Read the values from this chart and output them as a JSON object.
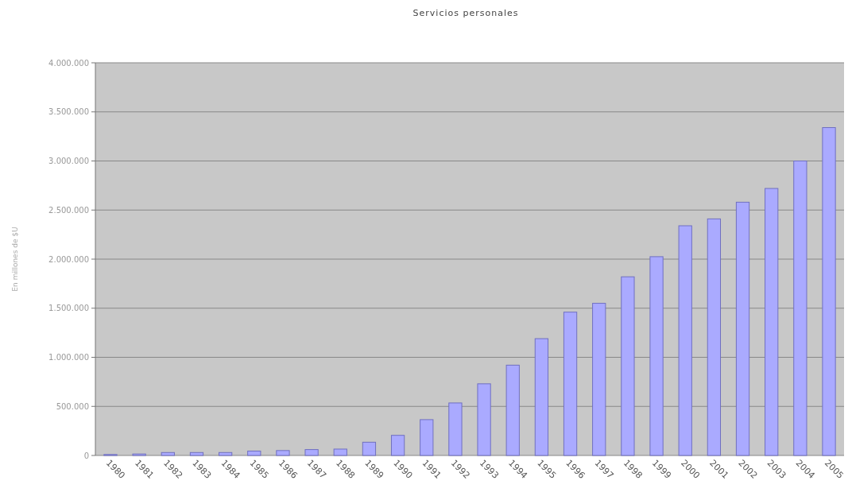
{
  "chart_data": {
    "type": "bar",
    "title": "Servicios personales",
    "ylabel": "En millones de $U",
    "categories": [
      "1980",
      "1981",
      "1982",
      "1983",
      "1984",
      "1985",
      "1986",
      "1987",
      "1988",
      "1989",
      "1990",
      "1991",
      "1992",
      "1993",
      "1994",
      "1995",
      "1996",
      "1997",
      "1998",
      "1999",
      "2000",
      "2001",
      "2002",
      "2003",
      "2004",
      "2005"
    ],
    "values": [
      10000,
      15000,
      30000,
      30000,
      30000,
      45000,
      50000,
      60000,
      65000,
      135000,
      205000,
      365000,
      535000,
      730000,
      920000,
      1190000,
      1460000,
      1550000,
      1820000,
      2025000,
      2340000,
      2410000,
      2580000,
      2720000,
      3000000,
      3340000
    ],
    "color": "#aaaaff",
    "ylim": [
      0,
      4000000
    ],
    "yticks": [
      {
        "value": 0,
        "label": "0"
      },
      {
        "value": 500000,
        "label": "500.000"
      },
      {
        "value": 1000000,
        "label": "1.000.000"
      },
      {
        "value": 1500000,
        "label": "1.500.000"
      },
      {
        "value": 2000000,
        "label": "2.000.000"
      },
      {
        "value": 2500000,
        "label": "2.500.000"
      },
      {
        "value": 3000000,
        "label": "3.000.000"
      },
      {
        "value": 3500000,
        "label": "3.500.000"
      },
      {
        "value": 4000000,
        "label": "4.000.000"
      }
    ],
    "grid": "y"
  }
}
